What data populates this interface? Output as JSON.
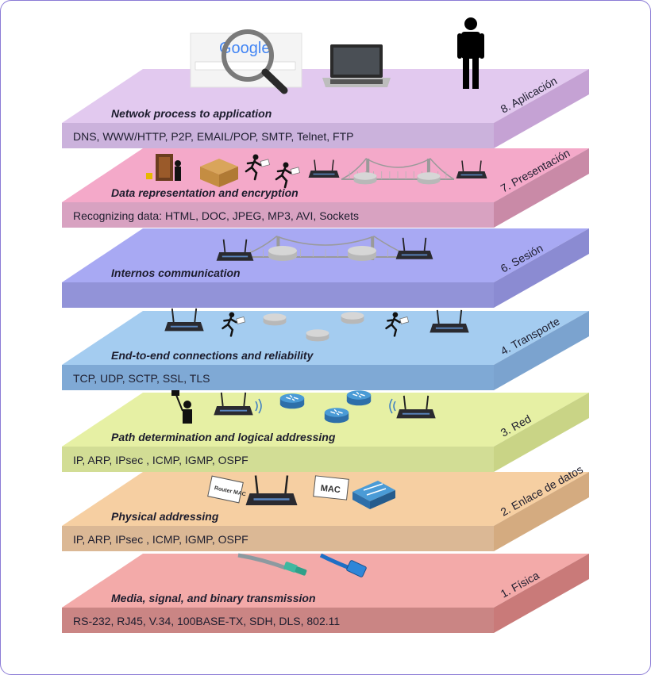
{
  "layers": [
    {
      "id": "aplicacion",
      "name": "8. Aplicación",
      "description": "Netwok process to application",
      "protocols": "DNS, WWW/HTTP, P2P, EMAIL/POP, SMTP, Telnet, FTP",
      "colors": {
        "top": "#e2c9ef",
        "front": "#cbb2dc",
        "side": "#c5a2d4"
      }
    },
    {
      "id": "presentacion",
      "name": "7. Presentación",
      "description": "Data representation and encryption",
      "protocols": "Recognizing data: HTML, DOC, JPEG, MP3, AVI, Sockets",
      "colors": {
        "top": "#f4a9c9",
        "front": "#d8a2c1",
        "side": "#c98aa7"
      }
    },
    {
      "id": "sesion",
      "name": "6. Sesión",
      "description": "Internos communication",
      "protocols": "",
      "colors": {
        "top": "#a8a9f3",
        "front": "#9293d8",
        "side": "#8b8bd2"
      }
    },
    {
      "id": "transporte",
      "name": "4. Transporte",
      "description": "End-to-end connections and reliability",
      "protocols": "TCP, UDP, SCTP, SSL, TLS",
      "colors": {
        "top": "#a4ccf0",
        "front": "#7fa9d5",
        "side": "#7ba3cf"
      }
    },
    {
      "id": "red",
      "name": "3. Red",
      "description": "Path determination and logical addressing",
      "protocols": "IP, ARP, IPsec , ICMP, IGMP, OSPF",
      "colors": {
        "top": "#e6f0a4",
        "front": "#d2dd95",
        "side": "#c9d486"
      }
    },
    {
      "id": "enlace",
      "name": "2. Enlace de datos",
      "description": "Physical addressing",
      "protocols": "IP, ARP, IPsec , ICMP, IGMP, OSPF",
      "colors": {
        "top": "#f6cfa2",
        "front": "#dbb895",
        "side": "#d4ab80"
      }
    },
    {
      "id": "fisica",
      "name": "1. Física",
      "description": "Media, signal, and binary transmission",
      "protocols": "RS-232, RJ45, V.34, 100BASE-TX, SDH, DLS, 802.11",
      "colors": {
        "top": "#f3aaa9",
        "front": "#ca8584",
        "side": "#c97a79"
      }
    }
  ],
  "decor": {
    "google_logo": "Google",
    "router_tag": "Router MAC",
    "mac_tag": "MAC"
  }
}
